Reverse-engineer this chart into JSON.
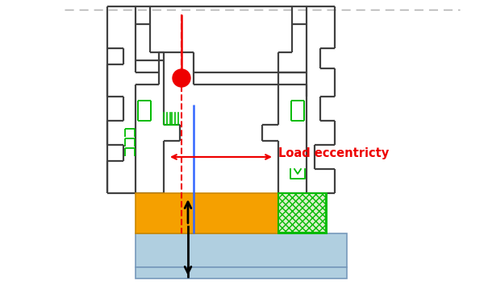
{
  "figsize": [
    6.0,
    3.69
  ],
  "dpi": 100,
  "bg_color": "#ffffff",
  "frame_color": "#404040",
  "green_color": "#00bb00",
  "blue_color": "#3366ff",
  "red_color": "#ee0000",
  "orange_color": "#f5a000",
  "light_blue_color": "#b0cfe0",
  "hatch_green_color": "#88cc88",
  "arrow_color": "#000000",
  "label_text": "Load eccentricty",
  "label_color": "#ee0000",
  "label_fontsize": 10.5,
  "dash_color": "#aaaaaa"
}
